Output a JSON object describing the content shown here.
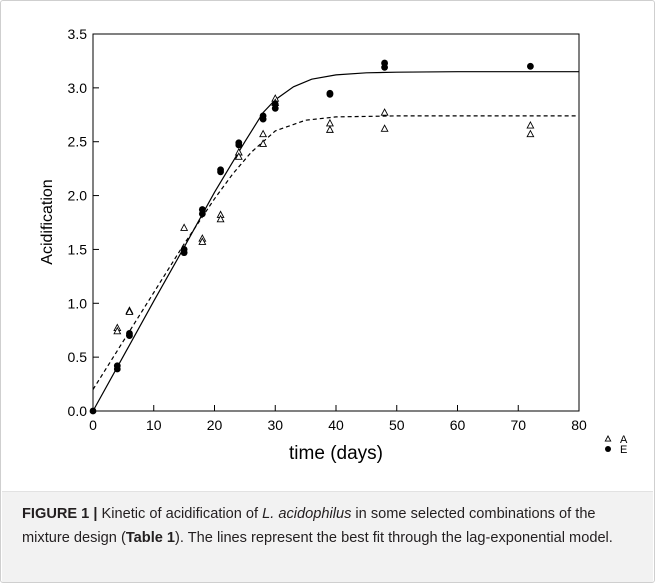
{
  "chart_data": {
    "type": "scatter",
    "xlabel": "time (days)",
    "ylabel": "Acidification",
    "xlim": [
      0,
      80
    ],
    "ylim": [
      0,
      3.5
    ],
    "x_ticks": [
      "0",
      "10",
      "20",
      "30",
      "40",
      "50",
      "60",
      "70",
      "80"
    ],
    "y_ticks": [
      "0.0",
      "0.5",
      "1.0",
      "1.5",
      "2.0",
      "2.5",
      "3.0",
      "3.5"
    ],
    "legend_position": "bottom-right-outside",
    "series": [
      {
        "name": "A",
        "marker": "open-triangle",
        "fit": "dashed",
        "points": [
          [
            4,
            0.77
          ],
          [
            4,
            0.74
          ],
          [
            6,
            0.93
          ],
          [
            6,
            0.92
          ],
          [
            15,
            1.7
          ],
          [
            18,
            1.6
          ],
          [
            18,
            1.57
          ],
          [
            21,
            1.82
          ],
          [
            21,
            1.78
          ],
          [
            24,
            2.4
          ],
          [
            24,
            2.36
          ],
          [
            28,
            2.57
          ],
          [
            28,
            2.48
          ],
          [
            30,
            2.9
          ],
          [
            30,
            2.86
          ],
          [
            39,
            2.67
          ],
          [
            39,
            2.61
          ],
          [
            48,
            2.77
          ],
          [
            48,
            2.62
          ],
          [
            72,
            2.65
          ],
          [
            72,
            2.57
          ]
        ],
        "fit_curve": [
          [
            0,
            0.2
          ],
          [
            5,
            0.65
          ],
          [
            10,
            1.1
          ],
          [
            15,
            1.55
          ],
          [
            20,
            1.97
          ],
          [
            23,
            2.2
          ],
          [
            26,
            2.4
          ],
          [
            30,
            2.6
          ],
          [
            35,
            2.7
          ],
          [
            40,
            2.73
          ],
          [
            50,
            2.74
          ],
          [
            60,
            2.74
          ],
          [
            70,
            2.74
          ],
          [
            80,
            2.74
          ]
        ]
      },
      {
        "name": "E",
        "marker": "filled-circle",
        "fit": "solid",
        "points": [
          [
            0,
            0.0
          ],
          [
            4,
            0.42
          ],
          [
            4,
            0.39
          ],
          [
            6,
            0.72
          ],
          [
            6,
            0.7
          ],
          [
            15,
            1.5
          ],
          [
            15,
            1.47
          ],
          [
            18,
            1.87
          ],
          [
            18,
            1.83
          ],
          [
            21,
            2.24
          ],
          [
            21,
            2.22
          ],
          [
            24,
            2.49
          ],
          [
            24,
            2.47
          ],
          [
            28,
            2.74
          ],
          [
            28,
            2.71
          ],
          [
            30,
            2.85
          ],
          [
            30,
            2.81
          ],
          [
            39,
            2.95
          ],
          [
            39,
            2.94
          ],
          [
            48,
            3.23
          ],
          [
            48,
            3.19
          ],
          [
            72,
            3.2
          ]
        ],
        "fit_curve": [
          [
            0,
            0.0
          ],
          [
            5,
            0.51
          ],
          [
            10,
            1.02
          ],
          [
            15,
            1.52
          ],
          [
            20,
            2.03
          ],
          [
            25,
            2.5
          ],
          [
            28,
            2.77
          ],
          [
            30,
            2.89
          ],
          [
            33,
            3.01
          ],
          [
            36,
            3.08
          ],
          [
            40,
            3.12
          ],
          [
            45,
            3.14
          ],
          [
            50,
            3.145
          ],
          [
            60,
            3.15
          ],
          [
            70,
            3.15
          ],
          [
            80,
            3.15
          ]
        ]
      }
    ]
  },
  "caption": {
    "label": "FIGURE 1 |",
    "text_part1": " Kinetic of acidification of ",
    "species": "L. acidophilus",
    "text_part2": " in some selected combinations of the mixture design (",
    "table_ref": "Table 1",
    "text_part3": "). The lines represent the best fit through the lag-exponential model."
  }
}
